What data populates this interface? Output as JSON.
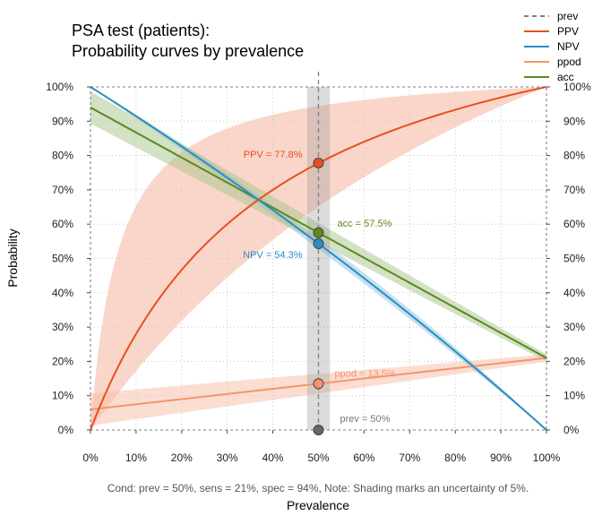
{
  "chart_data": {
    "type": "line",
    "title_lines": [
      "PSA test (patients):",
      "Probability curves by prevalence"
    ],
    "xlabel": "Prevalence",
    "ylabel": "Probability",
    "xlim": [
      0,
      1
    ],
    "ylim": [
      0,
      1
    ],
    "x_ticks": [
      "0%",
      "10%",
      "20%",
      "30%",
      "40%",
      "50%",
      "60%",
      "70%",
      "80%",
      "90%",
      "100%"
    ],
    "y_ticks": [
      "0%",
      "10%",
      "20%",
      "30%",
      "40%",
      "50%",
      "60%",
      "70%",
      "80%",
      "90%",
      "100%"
    ],
    "grid": true,
    "legend_position": "top-right",
    "params": {
      "prev": 0.5,
      "sens": 0.21,
      "spec": 0.94,
      "uncertainty": 0.05
    },
    "series": [
      {
        "name": "prev",
        "color": "#808080",
        "style": "dashed"
      },
      {
        "name": "PPV",
        "color": "#E6501E",
        "band_color": "#F4A38A"
      },
      {
        "name": "NPV",
        "color": "#2C8CC4",
        "band_color": "#8CC4E6"
      },
      {
        "name": "ppod",
        "color": "#F4956E",
        "band_color": "#F8BCA6"
      },
      {
        "name": "acc",
        "color": "#5A8A1E",
        "band_color": "#A8C48A"
      }
    ],
    "points": [
      {
        "series": "prev",
        "x": 0.5,
        "y": 0.0,
        "label": "prev = 50%",
        "fill": "#666666"
      },
      {
        "series": "PPV",
        "x": 0.5,
        "y": 0.778,
        "label": "PPV = 77.8%",
        "fill": "#E6501E"
      },
      {
        "series": "NPV",
        "x": 0.5,
        "y": 0.543,
        "label": "NPV = 54.3%",
        "fill": "#2C8CC4"
      },
      {
        "series": "ppod",
        "x": 0.5,
        "y": 0.135,
        "label": "ppod = 13.5%",
        "fill": "#F4956E"
      },
      {
        "series": "acc",
        "x": 0.5,
        "y": 0.575,
        "label": "acc = 57.5%",
        "fill": "#5A8A1E"
      }
    ],
    "caption": "Cond:  prev = 50%, sens = 21%, spec = 94%,   Note:  Shading marks an uncertainty of 5%."
  }
}
